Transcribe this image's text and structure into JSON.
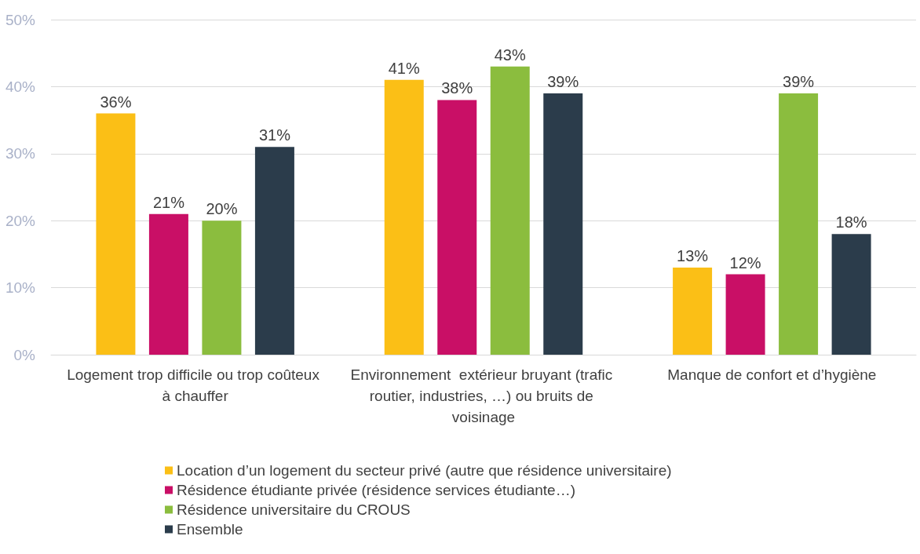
{
  "chart_data": {
    "type": "bar",
    "categories": [
      "Logement trop difficile ou trop coûteux à chauffer",
      "Environnement  extérieur bruyant (trafic routier, industries, …) ou bruits de voisinage",
      "Manque de confort et d’hygiène"
    ],
    "series": [
      {
        "name": "Location d’un logement du secteur privé (autre que résidence universitaire)",
        "color": "#fbbf16",
        "values": [
          36,
          41,
          13
        ],
        "value_labels": [
          "36%",
          "41%",
          "13%"
        ]
      },
      {
        "name": "Résidence étudiante privée (résidence services étudiante…)",
        "color": "#c90f66",
        "values": [
          21,
          38,
          12
        ],
        "value_labels": [
          "21%",
          "38%",
          "12%"
        ]
      },
      {
        "name": "Résidence universitaire du CROUS",
        "color": "#8bbd3e",
        "values": [
          20,
          43,
          39
        ],
        "value_labels": [
          "20%",
          "43%",
          "39%"
        ]
      },
      {
        "name": "Ensemble",
        "color": "#2b3c4b",
        "values": [
          31,
          39,
          18
        ],
        "value_labels": [
          "31%",
          "39%",
          "18%"
        ]
      }
    ],
    "ylim": [
      0,
      50
    ],
    "yticks": [
      {
        "value": 0,
        "label": "0%"
      },
      {
        "value": 10,
        "label": "10%"
      },
      {
        "value": 20,
        "label": "20%"
      },
      {
        "value": 30,
        "label": "30%"
      },
      {
        "value": 40,
        "label": "40%"
      },
      {
        "value": 50,
        "label": "50%"
      }
    ],
    "grid": "y",
    "legend": "bottom"
  }
}
